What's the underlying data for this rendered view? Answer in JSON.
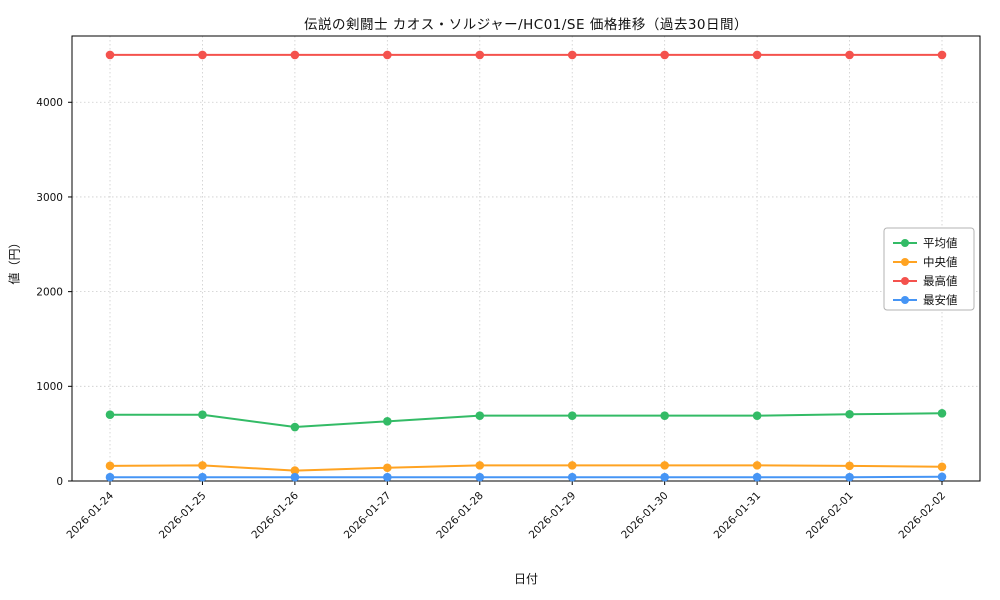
{
  "chart_data": {
    "type": "line",
    "title": "伝説の剣闘士 カオス・ソルジャー/HC01/SE 価格推移（過去30日間）",
    "xlabel": "日付",
    "ylabel": "値（円）",
    "categories": [
      "2026-01-24",
      "2026-01-25",
      "2026-01-26",
      "2026-01-27",
      "2026-01-28",
      "2026-01-29",
      "2026-01-30",
      "2026-01-31",
      "2026-02-01",
      "2026-02-02"
    ],
    "series": [
      {
        "name": "平均値",
        "color": "#33bb66",
        "values": [
          700,
          700,
          570,
          630,
          690,
          690,
          690,
          690,
          705,
          715
        ]
      },
      {
        "name": "中央値",
        "color": "#ffa322",
        "values": [
          160,
          165,
          110,
          140,
          165,
          165,
          165,
          165,
          160,
          150
        ]
      },
      {
        "name": "最高値",
        "color": "#f4524d",
        "values": [
          4500,
          4500,
          4500,
          4500,
          4500,
          4500,
          4500,
          4500,
          4500,
          4500
        ]
      },
      {
        "name": "最安値",
        "color": "#4695f5",
        "values": [
          40,
          40,
          40,
          40,
          40,
          40,
          40,
          40,
          40,
          45
        ]
      }
    ],
    "ylim": [
      0,
      4700
    ],
    "yticks": [
      0,
      1000,
      2000,
      3000,
      4000
    ],
    "grid": true,
    "legend_position": "right-middle",
    "axis_color": "#000000",
    "grid_color": "#cccccc"
  }
}
